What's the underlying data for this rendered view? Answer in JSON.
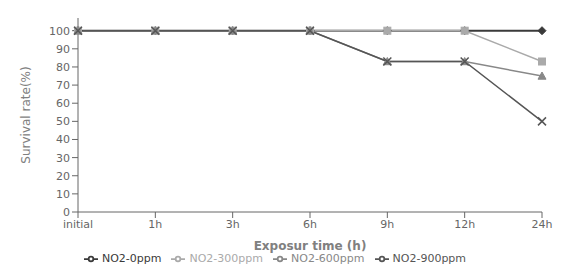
{
  "chart_data": {
    "type": "line",
    "categories": [
      "initial",
      "1h",
      "3h",
      "6h",
      "9h",
      "12h",
      "24h"
    ],
    "series": [
      {
        "name": "NO2-0ppm",
        "color": "#3a3a3a",
        "marker": "diamond",
        "line_style": "solid",
        "values": [
          100,
          100,
          100,
          100,
          100,
          100,
          100
        ]
      },
      {
        "name": "NO2-300ppm",
        "color": "#aaaaaa",
        "marker": "square",
        "line_style": "solid",
        "values": [
          100,
          100,
          100,
          100,
          100,
          100,
          83
        ]
      },
      {
        "name": "NO2-600ppm",
        "color": "#888888",
        "marker": "triangle",
        "line_style": "solid",
        "values": [
          100,
          100,
          100,
          100,
          83,
          83,
          75
        ]
      },
      {
        "name": "NO2-900ppm",
        "color": "#555555",
        "marker": "x",
        "line_style": "solid",
        "values": [
          100,
          100,
          100,
          100,
          83,
          83,
          50
        ]
      }
    ],
    "x_label": "Exposur time (h)",
    "y_label": "Survival rate(%)",
    "ylim": [
      0,
      107
    ],
    "yticks": [
      0,
      10,
      20,
      30,
      40,
      50,
      60,
      70,
      80,
      90,
      100
    ],
    "grid": false,
    "legend": "bottom"
  }
}
